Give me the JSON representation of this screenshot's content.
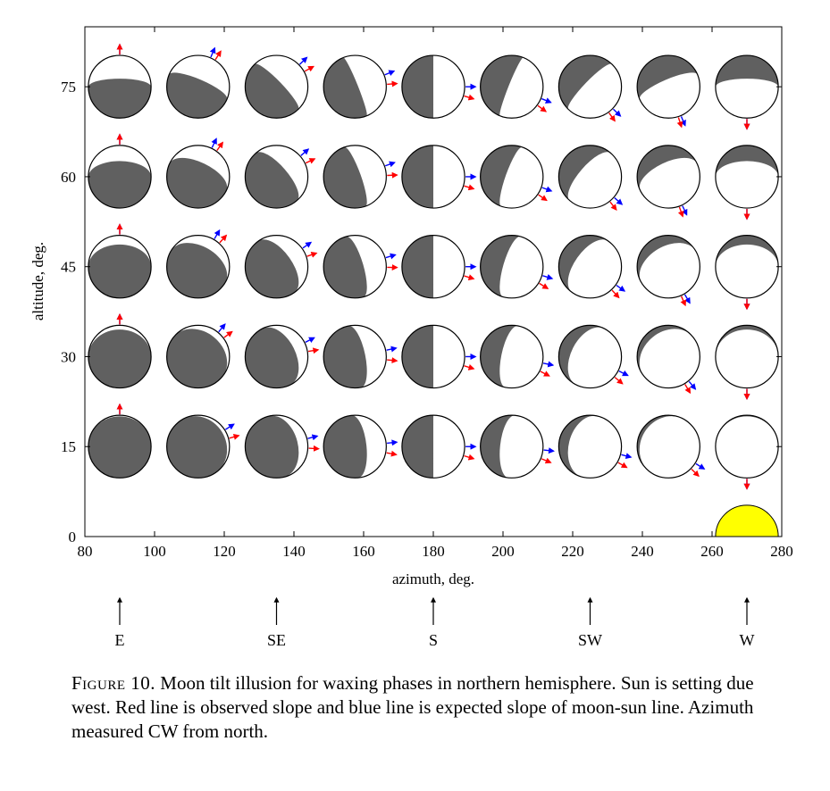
{
  "chart_data": {
    "type": "scatter",
    "xlabel": "azimuth, deg.",
    "ylabel": "altitude, deg.",
    "xlim": [
      80,
      280
    ],
    "ylim": [
      0,
      85
    ],
    "xticks": [
      "80",
      "100",
      "120",
      "140",
      "160",
      "180",
      "200",
      "220",
      "240",
      "260",
      "280"
    ],
    "yticks": [
      "0",
      "15",
      "30",
      "45",
      "60",
      "75"
    ],
    "moon_azimuths": [
      90,
      112.5,
      135,
      157.5,
      180,
      202.5,
      225,
      247.5,
      270
    ],
    "moon_altitudes": [
      15,
      30,
      45,
      60,
      75
    ],
    "moon_radius_deg": 9,
    "sun": {
      "azimuth": 270,
      "altitude": 0,
      "color": "#ffff00"
    },
    "observed_slope_color": "#ff0000",
    "expected_slope_color": "#0000ff",
    "dark_color": "#606060",
    "compass": [
      {
        "label": "E",
        "azimuth": 90
      },
      {
        "label": "SE",
        "azimuth": 135
      },
      {
        "label": "S",
        "azimuth": 180
      },
      {
        "label": "SW",
        "azimuth": 225
      },
      {
        "label": "W",
        "azimuth": 270
      }
    ]
  },
  "caption": {
    "label": "Figure 10.",
    "text": "Moon tilt illusion for waxing phases in northern hemisphere. Sun is setting due west. Red line is observed slope and blue line is expected slope of moon-sun line. Azimuth measured CW from north."
  }
}
